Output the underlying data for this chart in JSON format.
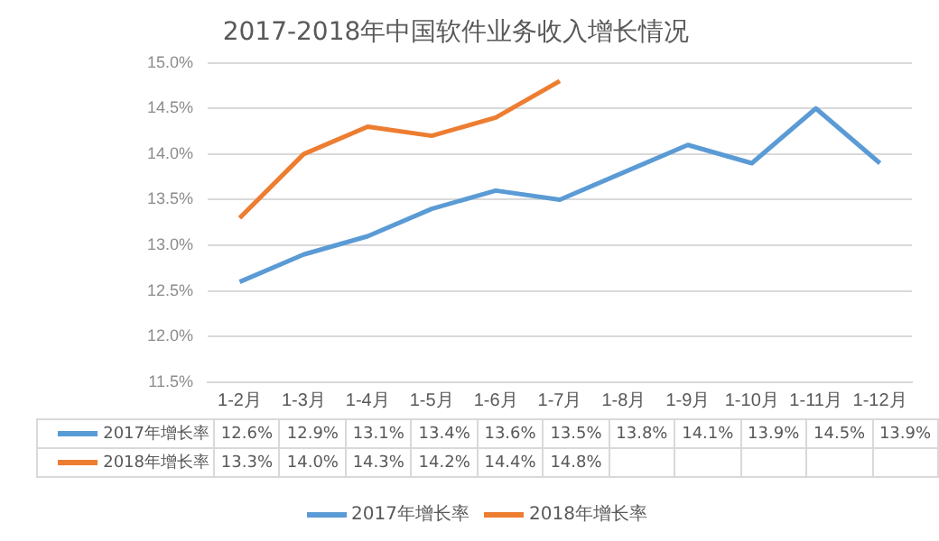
{
  "chart_data": {
    "type": "line",
    "title": "2017-2018年中国软件业务收入增长情况",
    "categories": [
      "1-2月",
      "1-3月",
      "1-4月",
      "1-5月",
      "1-6月",
      "1-7月",
      "1-8月",
      "1-9月",
      "1-10月",
      "1-11月",
      "1-12月"
    ],
    "series": [
      {
        "name": "2017年增长率",
        "color": "#5b9bd5",
        "values": [
          12.6,
          12.9,
          13.1,
          13.4,
          13.6,
          13.5,
          13.8,
          14.1,
          13.9,
          14.5,
          13.9
        ],
        "value_labels": [
          "12.6%",
          "12.9%",
          "13.1%",
          "13.4%",
          "13.6%",
          "13.5%",
          "13.8%",
          "14.1%",
          "13.9%",
          "14.5%",
          "13.9%"
        ]
      },
      {
        "name": "2018年增长率",
        "color": "#ed7d31",
        "values": [
          13.3,
          14.0,
          14.3,
          14.2,
          14.4,
          14.8,
          null,
          null,
          null,
          null,
          null
        ],
        "value_labels": [
          "13.3%",
          "14.0%",
          "14.3%",
          "14.2%",
          "14.4%",
          "14.8%",
          null,
          null,
          null,
          null,
          null
        ]
      }
    ],
    "ylim": [
      11.5,
      15.0
    ],
    "yticks": [
      {
        "value": 11.5,
        "label": "11.5%"
      },
      {
        "value": 12.0,
        "label": "12.0%"
      },
      {
        "value": 12.5,
        "label": "12.5%"
      },
      {
        "value": 13.0,
        "label": "13.0%"
      },
      {
        "value": 13.5,
        "label": "13.5%"
      },
      {
        "value": 14.0,
        "label": "14.0%"
      },
      {
        "value": 14.5,
        "label": "14.5%"
      },
      {
        "value": 15.0,
        "label": "15.0%"
      }
    ],
    "grid": "y",
    "legend": "bottom",
    "marker": "none",
    "line_style": "solid"
  }
}
